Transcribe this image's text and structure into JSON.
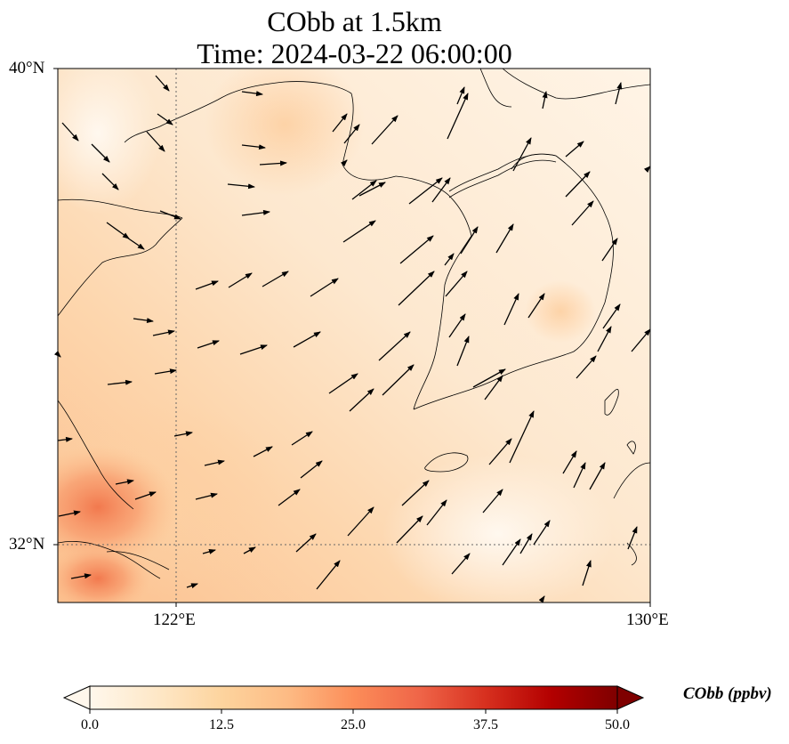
{
  "title_line1": "CObb at 1.5km",
  "title_line2": "Time: 2024-03-22 06:00:00",
  "lat_ticks": [
    "40°N",
    "32°N"
  ],
  "lon_ticks": [
    "122°E",
    "130°E"
  ],
  "map_extent": {
    "lon": [
      120,
      130
    ],
    "lat": [
      31,
      40
    ]
  },
  "colorbar": {
    "label": "CObb (ppbv)",
    "ticks": [
      "0.0",
      "12.5",
      "25.0",
      "37.5",
      "50.0"
    ],
    "range": [
      0,
      50
    ],
    "colormap": "OrRd",
    "extend": "both"
  },
  "colors": {
    "low": "#fff7ec",
    "mid": "#fdbb84",
    "high": "#d7301f",
    "max": "#7f0000"
  },
  "field_description_values": {
    "max_region_ppbv": 25,
    "background_ppbv": 3
  },
  "gridlines": {
    "lon": [
      122
    ],
    "lat": [
      32
    ],
    "style": "dotted"
  }
}
